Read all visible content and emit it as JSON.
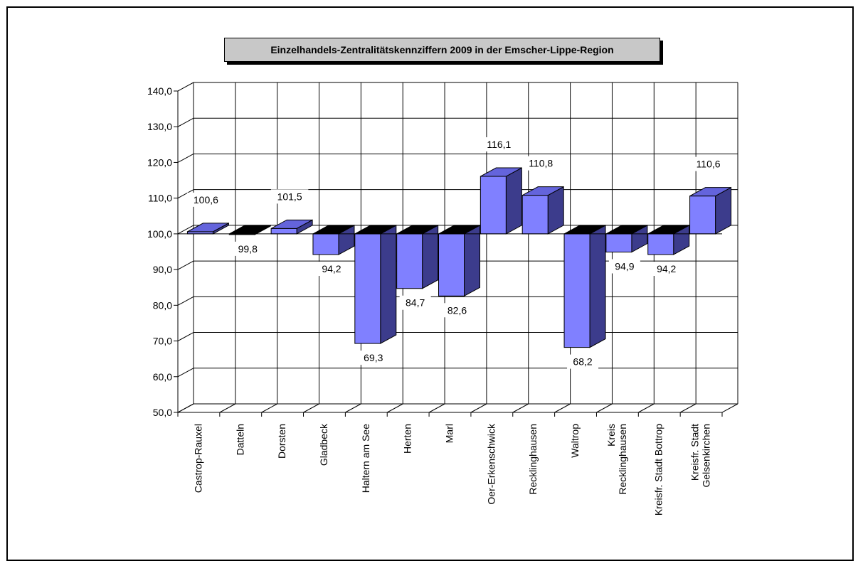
{
  "chart_data": {
    "type": "bar",
    "style": "3d-bars-from-baseline",
    "title": "Einzelhandels-Zentralitätskennziffern 2009 in der Emscher-Lippe-Region",
    "baseline": 100.0,
    "ylim": [
      50,
      140
    ],
    "yticks": [
      "50,0",
      "60,0",
      "70,0",
      "80,0",
      "90,0",
      "100,0",
      "110,0",
      "120,0",
      "130,0",
      "140,0"
    ],
    "grid": true,
    "categories": [
      "Castrop-Rauxel",
      "Datteln",
      "Dorsten",
      "Gladbeck",
      "Haltern am See",
      "Herten",
      "Marl",
      "Oer-Erkenschwick",
      "Recklinghausen",
      "Waltrop",
      "Kreis Recklinghausen",
      "Kreisfr. Stadt Bottrop",
      "Kreisfr. Stadt Gelsenkirchen"
    ],
    "values": [
      100.6,
      99.8,
      101.5,
      94.2,
      69.3,
      84.7,
      82.6,
      116.1,
      110.8,
      68.2,
      94.9,
      94.2,
      110.6
    ],
    "value_labels": [
      "100,6",
      "99,8",
      "101,5",
      "94,2",
      "69,3",
      "84,7",
      "82,6",
      "116,1",
      "110,8",
      "68,2",
      "94,9",
      "94,2",
      "110,6"
    ],
    "colors": {
      "front": "#8080ff",
      "side": "#3c3c8c",
      "top": "#6464dc",
      "dark_top": "#000000"
    }
  }
}
